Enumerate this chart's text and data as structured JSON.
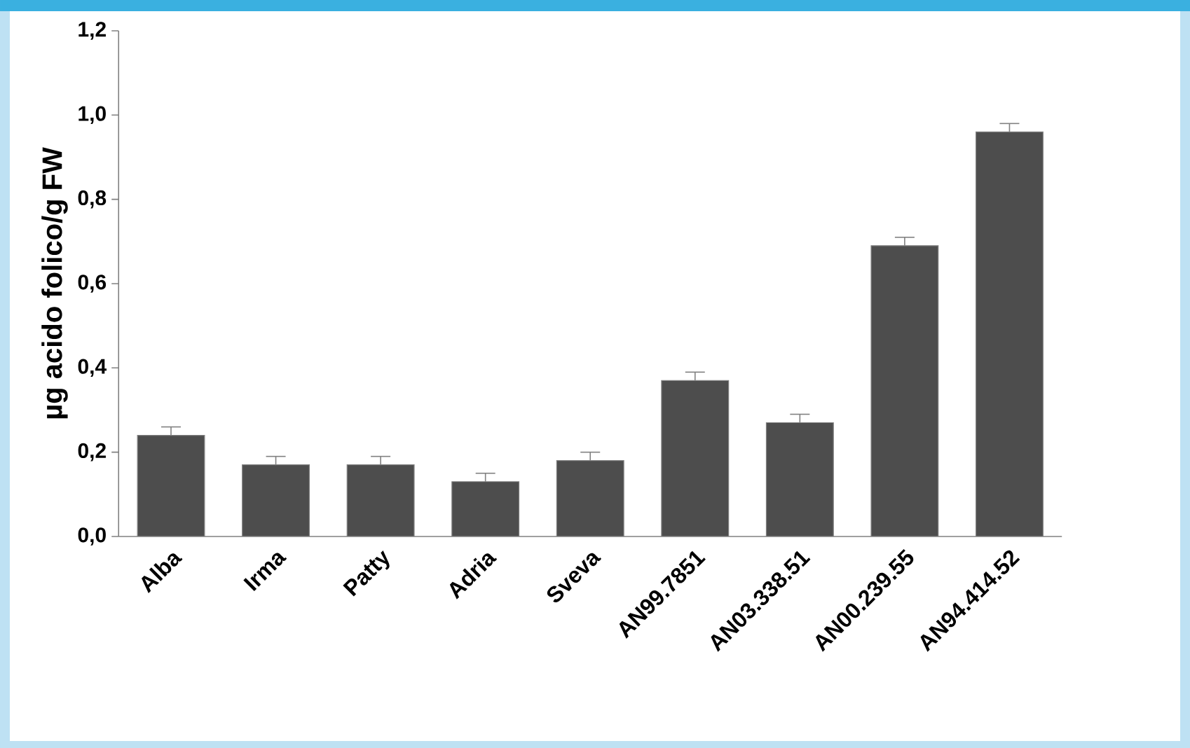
{
  "chart_data": {
    "type": "bar",
    "ylabel": "µg acido folico/g FW",
    "categories": [
      "Alba",
      "Irma",
      "Patty",
      "Adria",
      "Sveva",
      "AN99.7851",
      "AN03.338.51",
      "AN00.239.55",
      "AN94.414.52"
    ],
    "values": [
      0.24,
      0.17,
      0.17,
      0.13,
      0.18,
      0.37,
      0.27,
      0.69,
      0.96
    ],
    "errors": [
      0.02,
      0.02,
      0.02,
      0.02,
      0.02,
      0.02,
      0.02,
      0.02,
      0.02
    ],
    "color": "#4d4d4d",
    "ylim": [
      0,
      1.2
    ],
    "yticks": [
      {
        "value": 0,
        "label": "0,0"
      },
      {
        "value": 0.2,
        "label": "0,2"
      },
      {
        "value": 0.4,
        "label": "0,4"
      },
      {
        "value": 0.6,
        "label": "0,6"
      },
      {
        "value": 0.8,
        "label": "0,8"
      },
      {
        "value": 1.0,
        "label": "1,0"
      },
      {
        "value": 1.2,
        "label": "1,2"
      }
    ],
    "grid": false
  }
}
